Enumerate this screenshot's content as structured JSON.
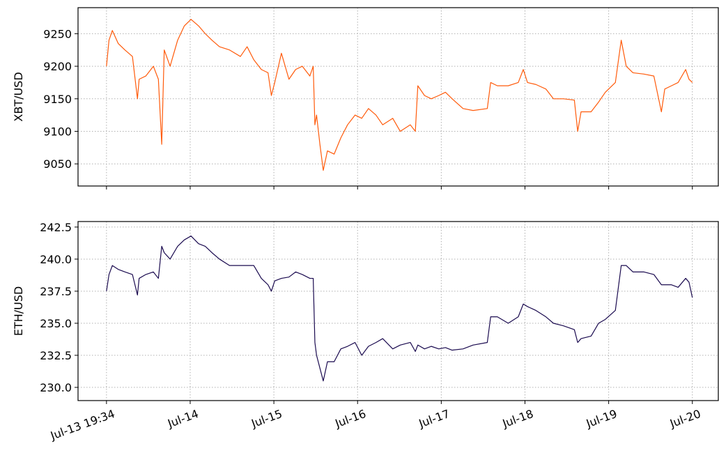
{
  "chart_data": [
    {
      "type": "line",
      "ylabel": "XBT/USD",
      "color": "#ff5a0a",
      "x": [
        0,
        0.03,
        0.07,
        0.14,
        0.22,
        0.31,
        0.37,
        0.39,
        0.47,
        0.56,
        0.62,
        0.66,
        0.69,
        0.76,
        0.85,
        0.93,
        1.01,
        1.1,
        1.18,
        1.26,
        1.35,
        1.47,
        1.6,
        1.68,
        1.76,
        1.85,
        1.93,
        1.97,
        2.01,
        2.09,
        2.18,
        2.26,
        2.34,
        2.43,
        2.47,
        2.49,
        2.51,
        2.55,
        2.59,
        2.64,
        2.72,
        2.8,
        2.88,
        2.97,
        3.05,
        3.13,
        3.22,
        3.3,
        3.42,
        3.51,
        3.63,
        3.69,
        3.72,
        3.8,
        3.88,
        3.97,
        4.05,
        4.13,
        4.26,
        4.38,
        4.55,
        4.59,
        4.67,
        4.8,
        4.92,
        4.98,
        5.03,
        5.13,
        5.25,
        5.34,
        5.46,
        5.59,
        5.63,
        5.67,
        5.79,
        5.88,
        5.96,
        6.08,
        6.15,
        6.21,
        6.29,
        6.42,
        6.54,
        6.63,
        6.67,
        6.75,
        6.83,
        6.92,
        6.96,
        7.0
      ],
      "values": [
        9200,
        9240,
        9255,
        9235,
        9225,
        9215,
        9150,
        9180,
        9185,
        9200,
        9180,
        9080,
        9225,
        9200,
        9240,
        9262,
        9272,
        9262,
        9250,
        9240,
        9230,
        9225,
        9215,
        9230,
        9210,
        9195,
        9190,
        9155,
        9175,
        9220,
        9180,
        9195,
        9200,
        9185,
        9200,
        9110,
        9125,
        9080,
        9040,
        9070,
        9065,
        9090,
        9110,
        9125,
        9120,
        9135,
        9125,
        9110,
        9120,
        9100,
        9110,
        9100,
        9170,
        9155,
        9150,
        9155,
        9160,
        9150,
        9135,
        9132,
        9135,
        9175,
        9170,
        9170,
        9175,
        9195,
        9175,
        9172,
        9165,
        9150,
        9150,
        9148,
        9100,
        9130,
        9130,
        9145,
        9160,
        9175,
        9240,
        9200,
        9190,
        9188,
        9185,
        9130,
        9165,
        9170,
        9175,
        9195,
        9180,
        9175
      ],
      "xlim": [
        -0.34,
        7.31
      ],
      "xticks": [
        0,
        1,
        2,
        3,
        4,
        5,
        6,
        7
      ],
      "ylim": [
        9016,
        9290
      ],
      "yticks": [
        9050,
        9100,
        9150,
        9200,
        9250
      ],
      "grid": true
    },
    {
      "type": "line",
      "ylabel": "ETH/USD",
      "color": "#1a0a4f",
      "x": [
        0,
        0.03,
        0.07,
        0.14,
        0.22,
        0.31,
        0.37,
        0.39,
        0.47,
        0.56,
        0.62,
        0.66,
        0.69,
        0.76,
        0.85,
        0.93,
        1.01,
        1.1,
        1.18,
        1.26,
        1.35,
        1.47,
        1.6,
        1.68,
        1.76,
        1.85,
        1.93,
        1.97,
        2.01,
        2.09,
        2.18,
        2.26,
        2.34,
        2.43,
        2.47,
        2.49,
        2.51,
        2.55,
        2.59,
        2.64,
        2.72,
        2.8,
        2.88,
        2.97,
        3.05,
        3.13,
        3.22,
        3.3,
        3.42,
        3.51,
        3.63,
        3.69,
        3.72,
        3.8,
        3.88,
        3.97,
        4.05,
        4.13,
        4.26,
        4.38,
        4.55,
        4.59,
        4.67,
        4.8,
        4.92,
        4.98,
        5.03,
        5.13,
        5.25,
        5.34,
        5.46,
        5.59,
        5.63,
        5.67,
        5.79,
        5.88,
        5.96,
        6.08,
        6.15,
        6.21,
        6.29,
        6.42,
        6.54,
        6.63,
        6.67,
        6.75,
        6.83,
        6.92,
        6.96,
        7.0
      ],
      "values": [
        237.5,
        238.8,
        239.5,
        239.2,
        239.0,
        238.8,
        237.2,
        238.5,
        238.8,
        239.0,
        238.5,
        241.0,
        240.5,
        240.0,
        241.0,
        241.5,
        241.8,
        241.2,
        241.0,
        240.5,
        240.0,
        239.5,
        239.5,
        239.5,
        239.5,
        238.5,
        238.0,
        237.5,
        238.3,
        238.5,
        238.6,
        239.0,
        238.8,
        238.5,
        238.5,
        233.5,
        232.5,
        231.5,
        230.5,
        232.0,
        232.0,
        233.0,
        233.2,
        233.5,
        232.5,
        233.2,
        233.5,
        233.8,
        233.0,
        233.3,
        233.5,
        232.8,
        233.3,
        233.0,
        233.2,
        233.0,
        233.1,
        232.9,
        233.0,
        233.3,
        233.5,
        235.5,
        235.5,
        235.0,
        235.5,
        236.5,
        236.3,
        236.0,
        235.5,
        235.0,
        234.8,
        234.5,
        233.5,
        233.8,
        234.0,
        235.0,
        235.3,
        236.0,
        239.5,
        239.5,
        239.0,
        239.0,
        238.8,
        238.0,
        238.0,
        238.0,
        237.8,
        238.5,
        238.2,
        237.0
      ],
      "xlim": [
        -0.34,
        7.31
      ],
      "xticks": [
        {
          "value": 0,
          "label": "Jul-13 19:34"
        },
        {
          "value": 1,
          "label": "Jul-14"
        },
        {
          "value": 2,
          "label": "Jul-15"
        },
        {
          "value": 3,
          "label": "Jul-16"
        },
        {
          "value": 4,
          "label": "Jul-17"
        },
        {
          "value": 5,
          "label": "Jul-18"
        },
        {
          "value": 6,
          "label": "Jul-19"
        },
        {
          "value": 7,
          "label": "Jul-20"
        }
      ],
      "ylim": [
        228.97,
        242.93
      ],
      "yticks": [
        {
          "value": 230,
          "label": "230.0"
        },
        232.5,
        {
          "value": 235,
          "label": "235.0"
        },
        237.5,
        {
          "value": 240,
          "label": "240.0"
        },
        242.5
      ],
      "grid": true
    }
  ]
}
